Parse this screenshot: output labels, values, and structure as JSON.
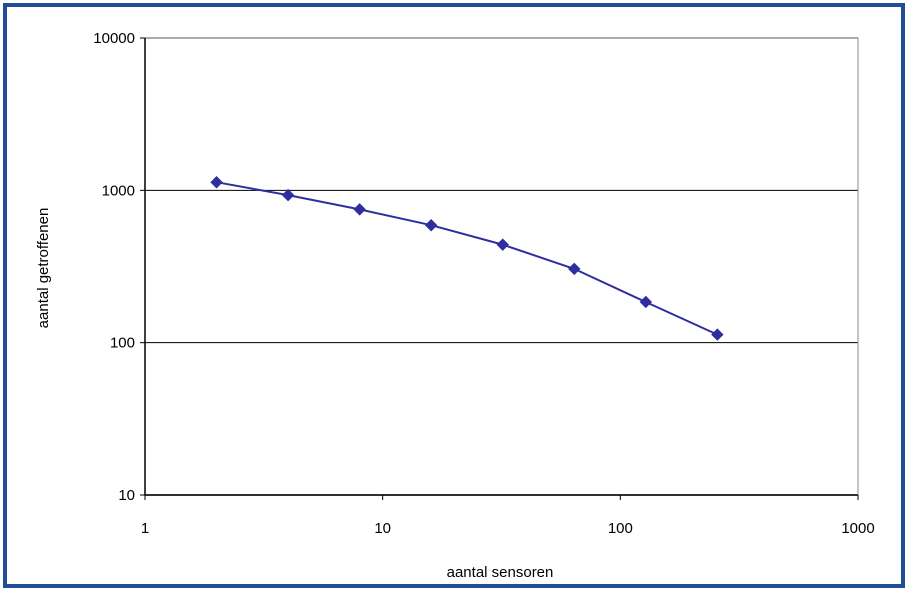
{
  "chart_data": {
    "type": "line",
    "x_scale": "log",
    "y_scale": "log",
    "xlim": [
      1,
      1000
    ],
    "ylim": [
      10,
      10000
    ],
    "x_ticks": [
      1,
      10,
      100,
      1000
    ],
    "y_ticks": [
      10,
      100,
      1000,
      10000
    ],
    "x_tick_labels": [
      "1",
      "10",
      "100",
      "1000"
    ],
    "y_tick_labels": [
      "10",
      "100",
      "1000",
      "10000"
    ],
    "xlabel": "aantal sensoren",
    "ylabel": "aantal getroffenen",
    "grid": "major horizontal",
    "legend": "none",
    "series": [
      {
        "color": "#2e2e9e",
        "marker": "diamond",
        "points": [
          {
            "x": 2,
            "y": 1130
          },
          {
            "x": 4,
            "y": 930
          },
          {
            "x": 8,
            "y": 750
          },
          {
            "x": 16,
            "y": 590
          },
          {
            "x": 32,
            "y": 440
          },
          {
            "x": 64,
            "y": 305
          },
          {
            "x": 128,
            "y": 185
          },
          {
            "x": 256,
            "y": 113
          }
        ]
      }
    ]
  },
  "colors": {
    "frame_border": "#1f4e96",
    "axes": "#000000",
    "series": "#2e2e9e"
  }
}
